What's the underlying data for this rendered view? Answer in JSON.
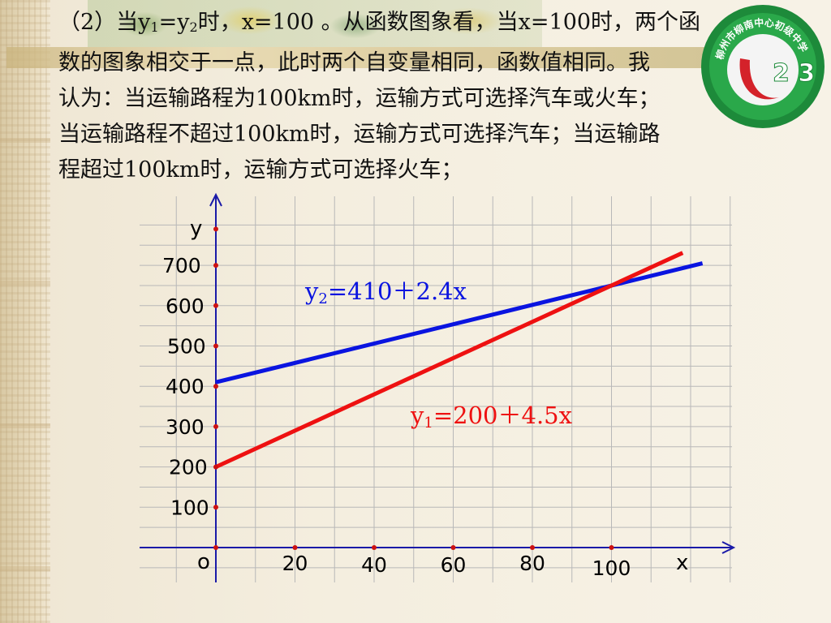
{
  "paragraph": {
    "part1": "（2）当y",
    "sub1": "1",
    "part2": "=y",
    "sub2": "2",
    "part3": "时，x=100 。从函数图象看，当x=100时，两个函",
    "line2": "数的图象相交于一点，此时两个自变量相同，函数值相同。我",
    "line3": "认为：当运输路程为100km时，运输方式可选择汽车或火车；",
    "line4": "当运输路程不超过100km时，运输方式可选择汽车；当运输路",
    "line5": "程超过100km时，运输方式可选择火车；"
  },
  "logo": {
    "arc_text": "柳州市柳南中心初级中学",
    "digits": "2 3"
  },
  "chart_data": {
    "type": "line",
    "xlabel": "x",
    "ylabel": "y",
    "origin_label": "o",
    "x_ticks": [
      20,
      40,
      60,
      80,
      100
    ],
    "y_ticks": [
      100,
      200,
      300,
      400,
      500,
      600,
      700
    ],
    "xlim": [
      0,
      128
    ],
    "ylim": [
      0,
      800
    ],
    "grid": true,
    "series": [
      {
        "name": "y2=410+2.4x",
        "label_main": "y",
        "label_sub": "2",
        "label_rest": "=410＋2.4x",
        "color": "#0a14e0",
        "intercept": 410,
        "slope": 2.4,
        "x": [
          0,
          123
        ],
        "y": [
          410,
          705
        ]
      },
      {
        "name": "y1=200+4.5x",
        "label_main": "y",
        "label_sub": "1",
        "label_rest": "=200＋4.5x",
        "color": "#ee1111",
        "intercept": 200,
        "slope": 4.5,
        "x": [
          0,
          118
        ],
        "y": [
          200,
          731
        ]
      }
    ]
  }
}
